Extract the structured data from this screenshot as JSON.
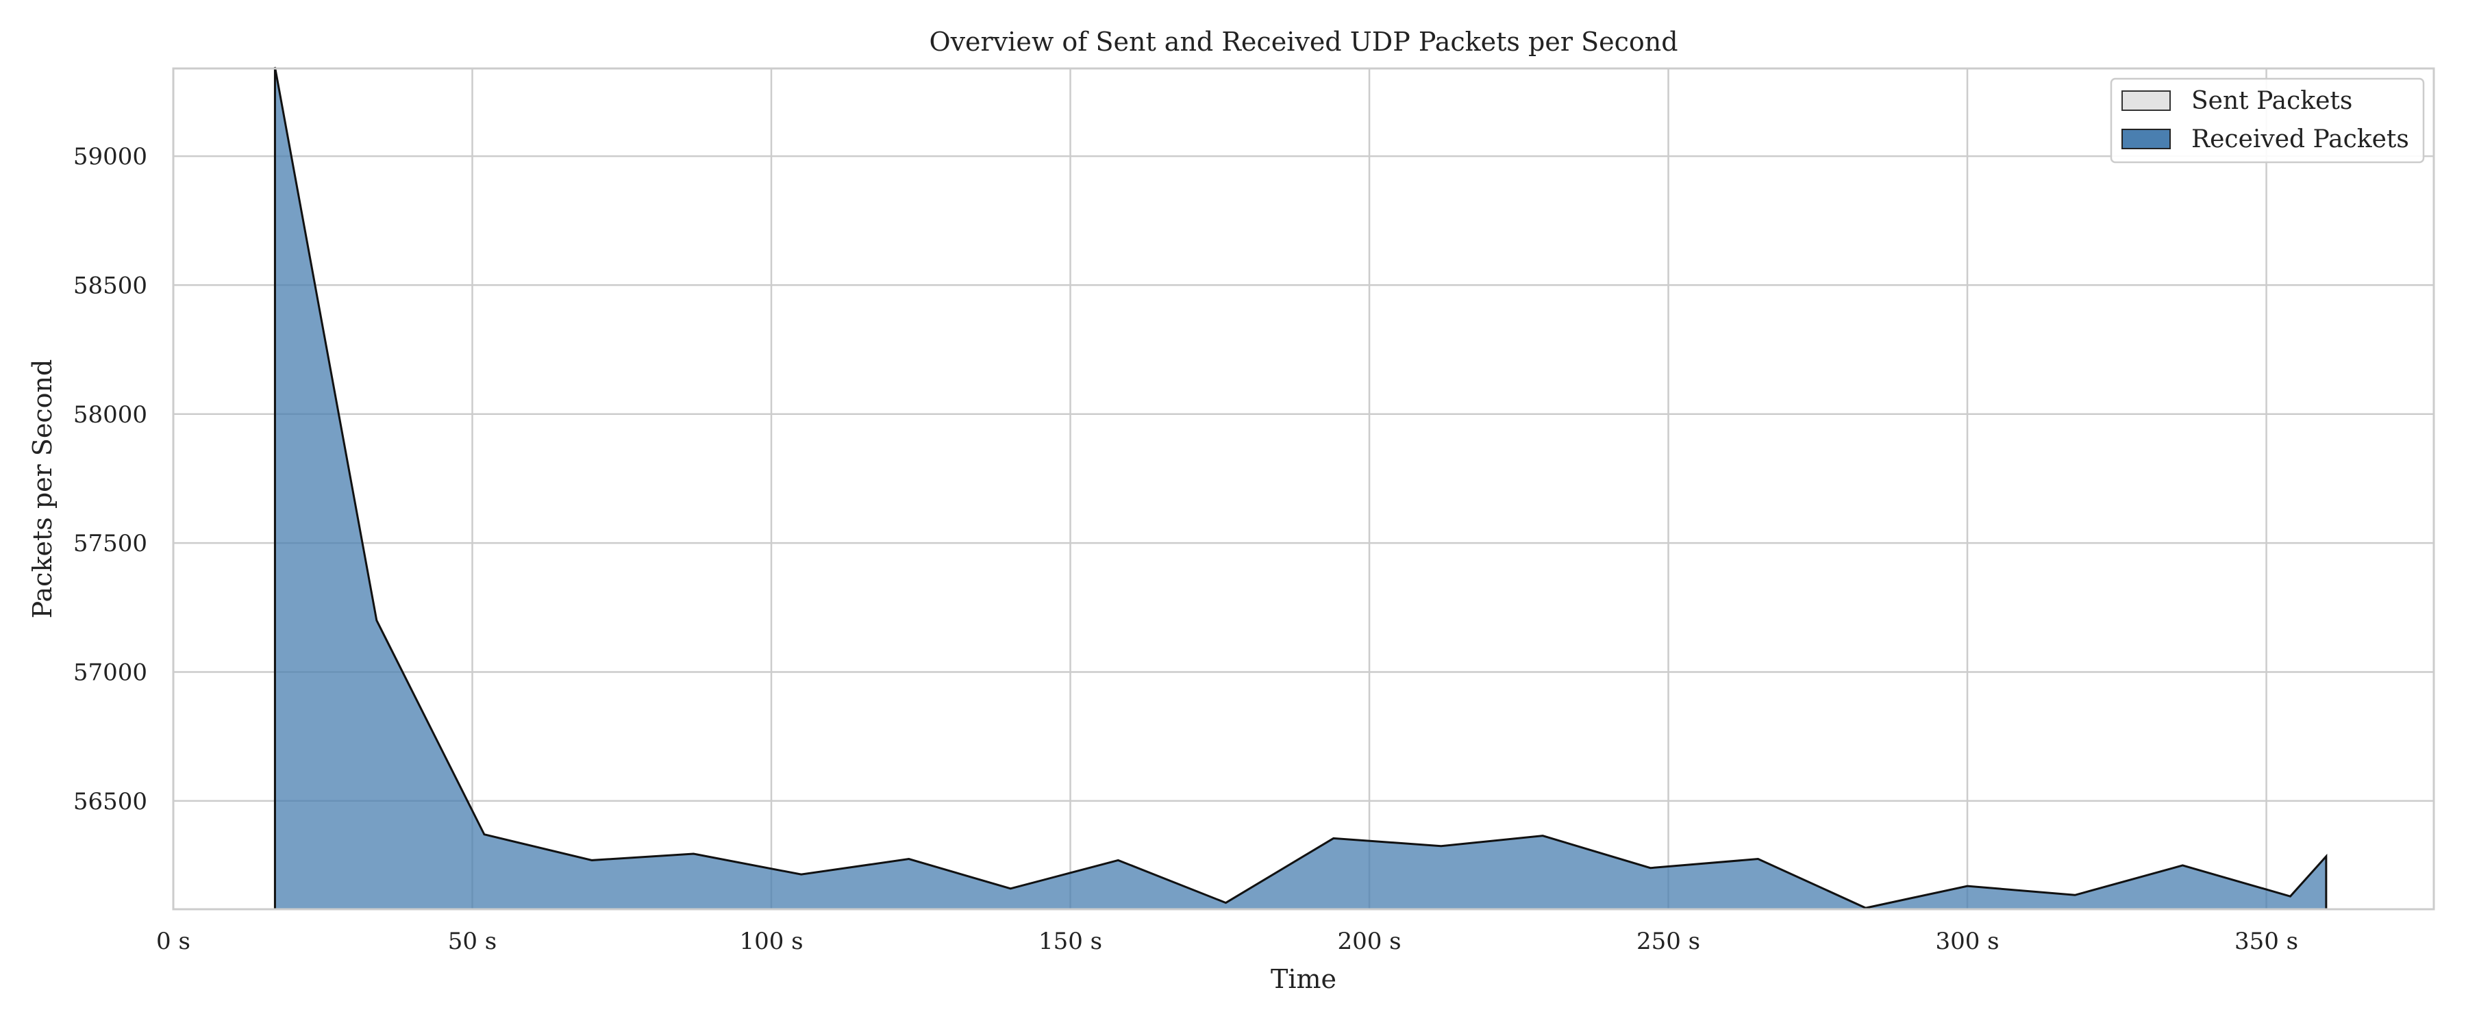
{
  "chart_data": {
    "type": "area",
    "title": "Overview of Sent and Received UDP Packets per Second",
    "xlabel": "Time",
    "ylabel": "Packets per Second",
    "xlim": [
      0,
      378
    ],
    "ylim": [
      56080,
      59340
    ],
    "xticks": [
      0,
      50,
      100,
      150,
      200,
      250,
      300,
      350
    ],
    "xtick_labels": [
      "0 s",
      "50 s",
      "100 s",
      "150 s",
      "200 s",
      "250 s",
      "300 s",
      "350 s"
    ],
    "yticks": [
      56500,
      57000,
      57500,
      58000,
      58500,
      59000
    ],
    "ytick_labels": [
      "56500",
      "57000",
      "57500",
      "58000",
      "58500",
      "59000"
    ],
    "grid": true,
    "legend_position": "top-right",
    "series": [
      {
        "name": "Sent Packets",
        "color": "#e3e3e3",
        "x": [],
        "values": []
      },
      {
        "name": "Received Packets",
        "color": "#4a7fb0",
        "x": [
          17,
          34,
          52,
          70,
          87,
          105,
          123,
          140,
          158,
          176,
          194,
          212,
          229,
          247,
          265,
          283,
          300,
          318,
          336,
          354,
          360
        ],
        "values": [
          59350,
          57200,
          56370,
          56270,
          56295,
          56215,
          56275,
          56160,
          56270,
          56105,
          56355,
          56325,
          56365,
          56240,
          56275,
          56085,
          56170,
          56135,
          56250,
          56130,
          56285
        ]
      }
    ]
  }
}
